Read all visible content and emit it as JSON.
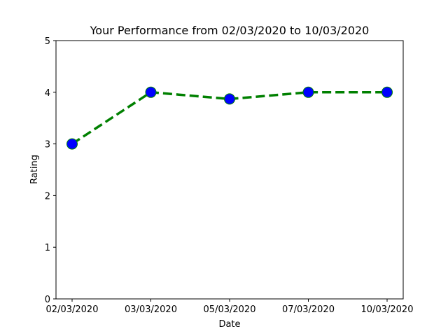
{
  "chart_data": {
    "type": "line",
    "title": "Your Performance from 02/03/2020 to 10/03/2020",
    "xlabel": "Date",
    "ylabel": "Rating",
    "categories": [
      "02/03/2020",
      "03/03/2020",
      "05/03/2020",
      "07/03/2020",
      "10/03/2020"
    ],
    "values": [
      3.0,
      4.0,
      3.87,
      4.0,
      4.0
    ],
    "ylim": [
      0,
      5
    ],
    "yticks": [
      "0",
      "1",
      "2",
      "3",
      "4",
      "5"
    ],
    "grid": false,
    "line_color": "#008000",
    "line_style": "dashed",
    "marker_color": "#0000ff",
    "marker_edge_color": "#008000"
  }
}
